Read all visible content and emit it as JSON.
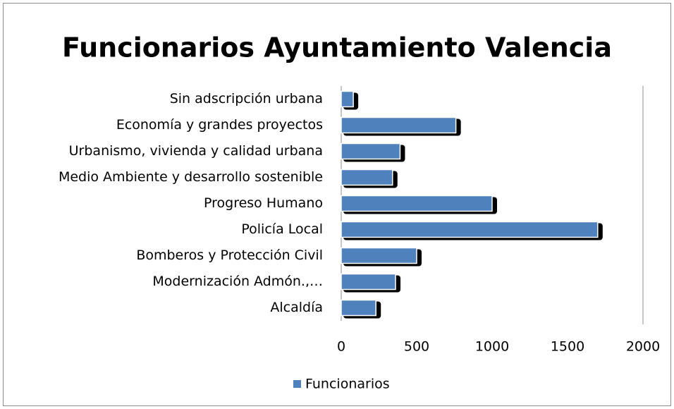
{
  "chart_data": {
    "type": "bar",
    "orientation": "horizontal",
    "title": "Funcionarios Ayuntamiento Valencia",
    "categories": [
      "Sin adscripción urbana",
      "Economía y grandes proyectos",
      "Urbanismo, vivienda y calidad urbana",
      "Medio Ambiente y desarrollo sostenible",
      "Progreso Humano",
      "Policía Local",
      "Bomberos y Protección Civil",
      "Modernización Admón.,…",
      "Alcaldía"
    ],
    "series": [
      {
        "name": "Funcionarios",
        "color": "#4f81bd",
        "values": [
          80,
          760,
          390,
          340,
          1000,
          1700,
          500,
          360,
          230
        ]
      }
    ],
    "xlim": [
      0,
      2000
    ],
    "xticks": [
      0,
      500,
      1000,
      1500,
      2000
    ],
    "legend": "bottom"
  }
}
